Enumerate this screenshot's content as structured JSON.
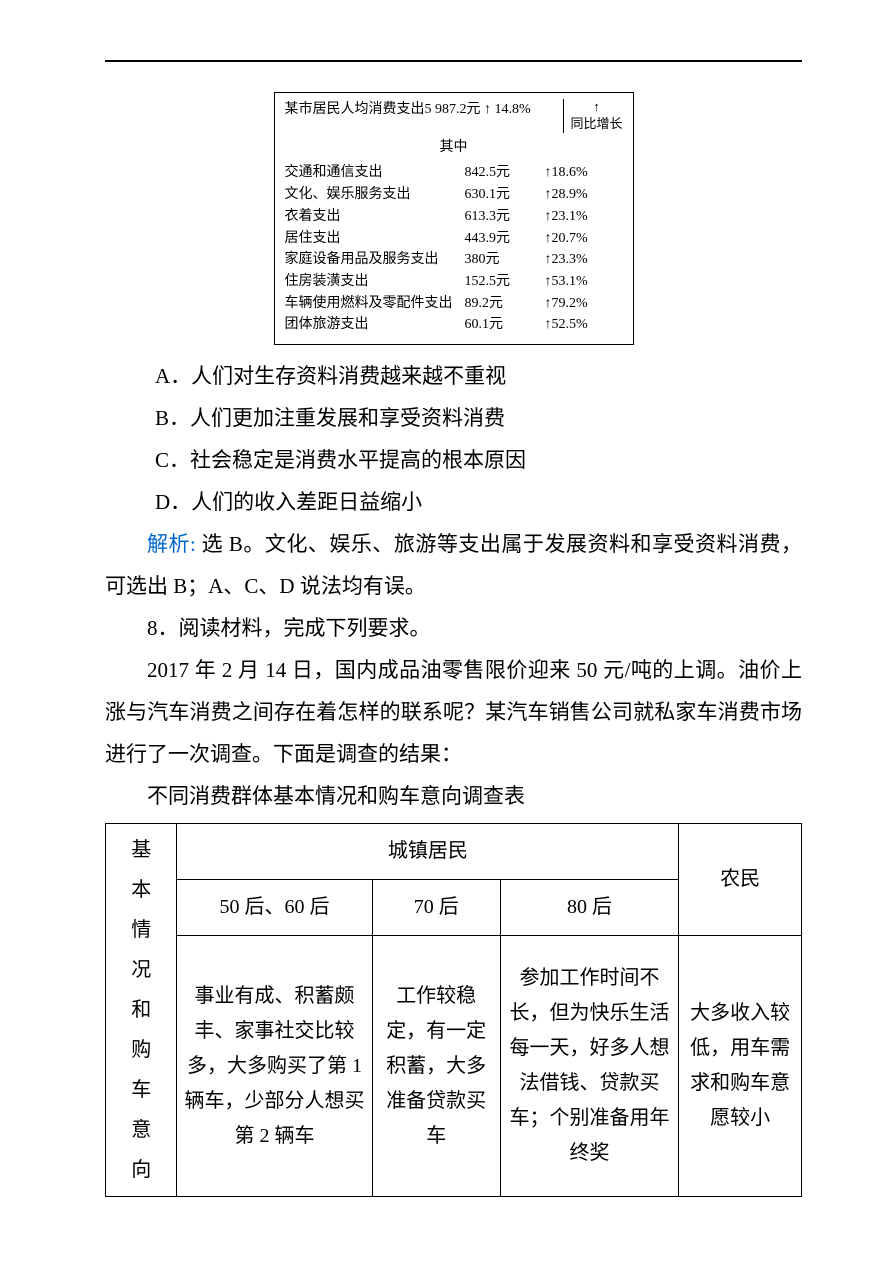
{
  "spending": {
    "header_left": "某市居民人均消费支出5 987.2元",
    "header_arrow": "↑",
    "header_pct": "14.8%",
    "yoy_label_1": "↑",
    "yoy_label_2": "同比增长",
    "subhead": "其中",
    "rows": [
      {
        "cat": "交通和通信支出",
        "amt": "842.5元",
        "pct": "↑18.6%"
      },
      {
        "cat": "文化、娱乐服务支出",
        "amt": "630.1元",
        "pct": "↑28.9%"
      },
      {
        "cat": "衣着支出",
        "amt": "613.3元",
        "pct": "↑23.1%"
      },
      {
        "cat": "居住支出",
        "amt": "443.9元",
        "pct": "↑20.7%"
      },
      {
        "cat": "家庭设备用品及服务支出",
        "amt": "380元",
        "pct": "↑23.3%"
      },
      {
        "cat": "住房装潢支出",
        "amt": "152.5元",
        "pct": "↑53.1%"
      },
      {
        "cat": "车辆使用燃料及零配件支出",
        "amt": "89.2元",
        "pct": "↑79.2%"
      },
      {
        "cat": "团体旅游支出",
        "amt": "60.1元",
        "pct": "↑52.5%"
      }
    ]
  },
  "options": {
    "a": "A．人们对生存资料消费越来越不重视",
    "b": "B．人们更加注重发展和享受资料消费",
    "c": "C．社会稳定是消费水平提高的根本原因",
    "d": "D．人们的收入差距日益缩小"
  },
  "answer": {
    "label": "解析:",
    "text": "选 B。文化、娱乐、旅游等支出属于发展资料和享受资料消费，可选出 B；A、C、D 说法均有误。"
  },
  "q8": {
    "num": "8．阅读材料，完成下列要求。",
    "body": "2017 年 2 月 14 日，国内成品油零售限价迎来 50 元/吨的上调。油价上涨与汽车消费之间存在着怎样的联系呢？某汽车销售公司就私家车消费市场进行了一次调查。下面是调查的结果："
  },
  "survey": {
    "title": "不同消费群体基本情况和购车意向调查表",
    "headers": {
      "urban": "城镇居民",
      "rural": "农民",
      "g1": "50 后、60 后",
      "g2": "70 后",
      "g3": "80 后"
    },
    "row_label": "基本情况和购车意向",
    "cells": {
      "g1": "事业有成、积蓄颇丰、家事社交比较多，大多购买了第 1 辆车，少部分人想买第 2 辆车",
      "g2": "工作较稳定，有一定积蓄，大多准备贷款买车",
      "g3": "参加工作时间不长，但为快乐生活每一天，好多人想法借钱、贷款买车；个别准备用年终奖",
      "rural": "大多收入较低，用车需求和购车意愿较小"
    }
  }
}
